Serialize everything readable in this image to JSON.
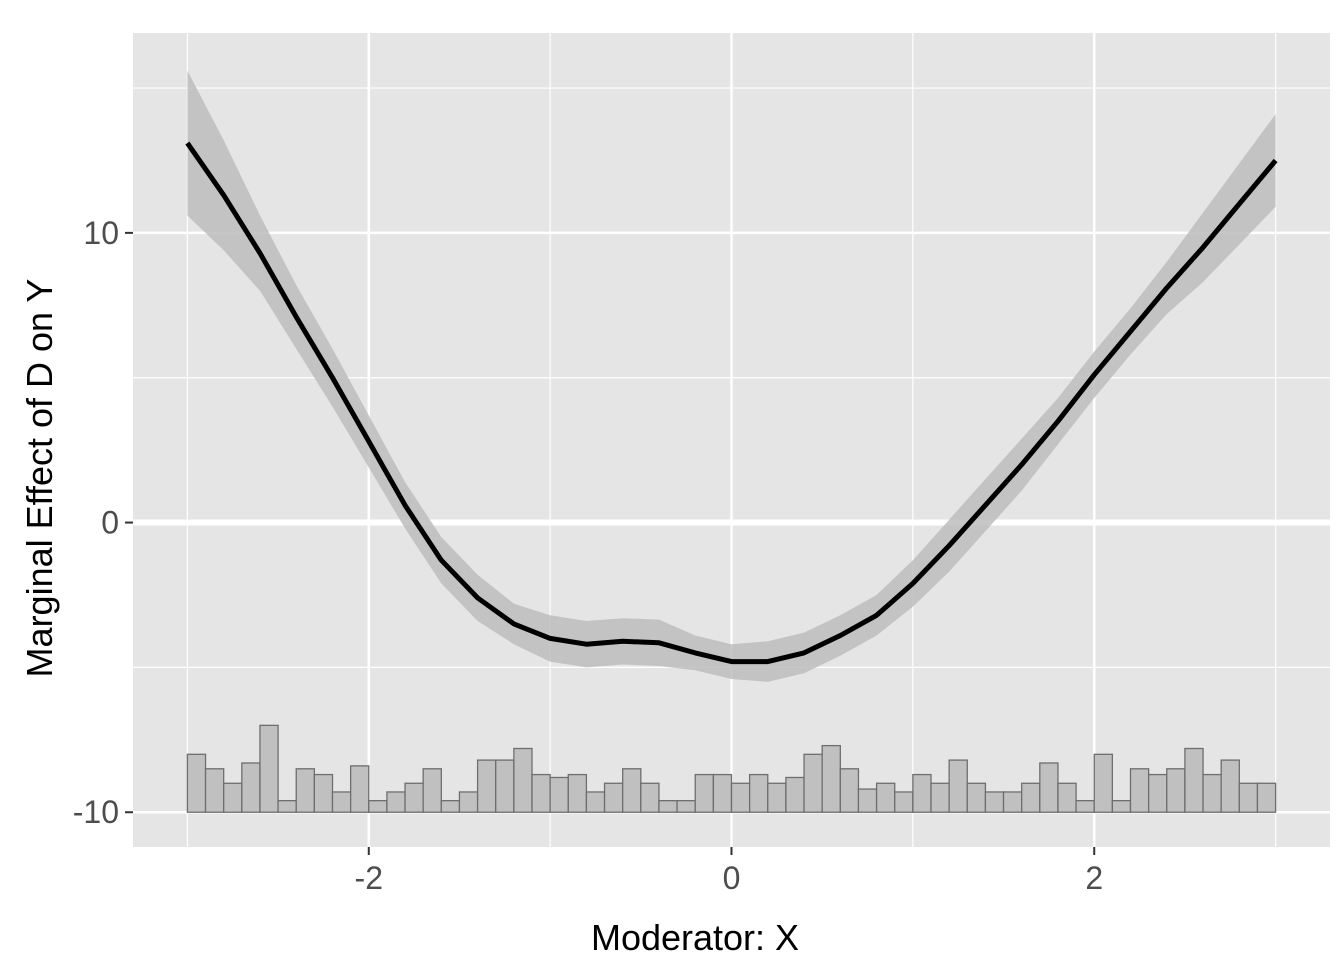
{
  "chart_data": {
    "type": "line",
    "xlabel": "Moderator: X",
    "ylabel": "Marginal Effect of D on Y",
    "xlim": [
      -3.3,
      3.3
    ],
    "ylim": [
      -11.2,
      16.9
    ],
    "x_ticks": [
      -2,
      0,
      2
    ],
    "y_ticks": [
      -10,
      0,
      10
    ],
    "grid": true,
    "reference_line_y": 0,
    "colors": {
      "panel": "#e5e5e5",
      "grid": "#ffffff",
      "line": "#000000",
      "band": "#bdbdbd",
      "hist_treated": "#f0a5a8",
      "hist_control": "#c0c0c0",
      "hist_border": "#6e6e6e"
    },
    "series": [
      {
        "x": [
          -3.0,
          -2.8,
          -2.6,
          -2.4,
          -2.2,
          -2.0,
          -1.8,
          -1.6,
          -1.4,
          -1.2,
          -1.0,
          -0.8,
          -0.6,
          -0.4,
          -0.2,
          0.0,
          0.2,
          0.4,
          0.6,
          0.8,
          1.0,
          1.2,
          1.4,
          1.6,
          1.8,
          2.0,
          2.2,
          2.4,
          2.6,
          2.8,
          3.0
        ],
        "y": [
          13.1,
          11.3,
          9.3,
          7.1,
          5.0,
          2.8,
          0.6,
          -1.3,
          -2.6,
          -3.5,
          -4.0,
          -4.2,
          -4.1,
          -4.15,
          -4.5,
          -4.8,
          -4.8,
          -4.5,
          -3.9,
          -3.2,
          -2.1,
          -0.8,
          0.6,
          2.0,
          3.5,
          5.1,
          6.6,
          8.1,
          9.5,
          11.0,
          12.5
        ],
        "lower": [
          10.6,
          9.4,
          8.0,
          6.0,
          4.0,
          1.9,
          -0.2,
          -2.1,
          -3.4,
          -4.2,
          -4.8,
          -5.0,
          -4.9,
          -4.95,
          -5.1,
          -5.4,
          -5.5,
          -5.2,
          -4.6,
          -3.9,
          -2.9,
          -1.7,
          -0.3,
          1.1,
          2.7,
          4.3,
          5.8,
          7.2,
          8.3,
          9.6,
          10.9
        ],
        "upper": [
          15.6,
          13.2,
          10.6,
          8.2,
          6.0,
          3.7,
          1.4,
          -0.5,
          -1.8,
          -2.8,
          -3.2,
          -3.4,
          -3.3,
          -3.35,
          -3.9,
          -4.2,
          -4.1,
          -3.8,
          -3.2,
          -2.5,
          -1.3,
          0.1,
          1.5,
          2.9,
          4.3,
          5.9,
          7.4,
          9.0,
          10.7,
          12.4,
          14.1
        ]
      }
    ],
    "histogram": {
      "bin_width": 0.2,
      "bin_starts": [
        -3.0,
        -2.8,
        -2.6,
        -2.4,
        -2.2,
        -2.0,
        -1.8,
        -1.6,
        -1.4,
        -1.2,
        -1.0,
        -0.8,
        -0.6,
        -0.4,
        -0.2,
        0.0,
        0.2,
        0.4,
        0.6,
        0.8,
        1.0,
        1.2,
        1.4,
        1.6,
        1.8,
        2.0,
        2.2,
        2.4,
        2.6,
        2.8
      ],
      "control_tops": [
        -8.4,
        -9.4,
        -6.8,
        -8.6,
        -9.7,
        -9.0,
        -9.9,
        -8.4,
        -8.6,
        -9.3,
        -9.0,
        -9.6,
        -8.4,
        -8.6,
        -8.7,
        -8.8,
        -8.4,
        -9.0,
        -9.2,
        -8.4,
        -9.0,
        -9.4,
        -9.0,
        -8.9,
        -9.8,
        -8.6,
        -8.5,
        -8.5,
        -8.6,
        -9.2
      ],
      "total_tops": [
        -7.7,
        -8.8,
        -7.3,
        -8.6,
        -9.4,
        -7.6,
        -9.3,
        -7.3,
        -7.4,
        -7.7,
        -9.2,
        -8.3,
        -8.3,
        -7.1,
        -7.3,
        -7.4,
        -7.2,
        -8.5,
        -7.7,
        -8.0,
        -7.6,
        -7.5,
        -7.6,
        -9.5,
        -7.5,
        -8.2,
        -7.7,
        -7.3,
        -6.4,
        -7.9
      ],
      "fine_bins": 60,
      "fine_control_tops": [
        -8.0,
        -8.5,
        -9.0,
        -8.3,
        -7.0,
        -9.6,
        -8.5,
        -8.7,
        -9.3,
        -8.4,
        -9.6,
        -9.3,
        -9.0,
        -8.5,
        -9.6,
        -9.3,
        -8.2,
        -8.2,
        -7.8,
        -8.7,
        -8.8,
        -8.7,
        -9.3,
        -9.0,
        -8.5,
        -9.0,
        -9.6,
        -9.6,
        -8.7,
        -8.7,
        -9.0,
        -8.7,
        -9.0,
        -8.8,
        -8.0,
        -7.7,
        -8.5,
        -9.2,
        -9.0,
        -9.3,
        -8.7,
        -9.0,
        -8.2,
        -9.0,
        -9.3,
        -9.3,
        -9.0,
        -8.3,
        -9.0,
        -9.6,
        -8.0,
        -9.6,
        -8.5,
        -8.7,
        -8.5,
        -7.8,
        -8.7,
        -8.2,
        -9.0,
        -9.0
      ],
      "fine_total_tops": [
        -7.5,
        -6.9,
        -8.8,
        -9.3,
        -5.6,
        -9.4,
        -7.5,
        -8.7,
        -8.5,
        -7.5,
        -8.3,
        -8.0,
        -7.5,
        -9.0,
        -8.0,
        -8.2,
        -6.9,
        -6.9,
        -7.2,
        -7.5,
        -8.9,
        -7.5,
        -8.2,
        -7.8,
        -8.3,
        -7.5,
        -8.8,
        -7.5,
        -7.3,
        -6.9,
        -6.7,
        -6.3,
        -7.5,
        -8.0,
        -6.0,
        -6.9,
        -7.3,
        -8.5,
        -7.3,
        -8.5,
        -7.3,
        -7.6,
        -6.9,
        -8.3,
        -8.0,
        -6.9,
        -7.2,
        -7.8,
        -8.0,
        -6.9,
        -8.8,
        -7.7,
        -7.5,
        -8.0,
        -6.9,
        -7.3,
        -5.9,
        -8.0,
        -7.7,
        -8.0
      ]
    }
  }
}
